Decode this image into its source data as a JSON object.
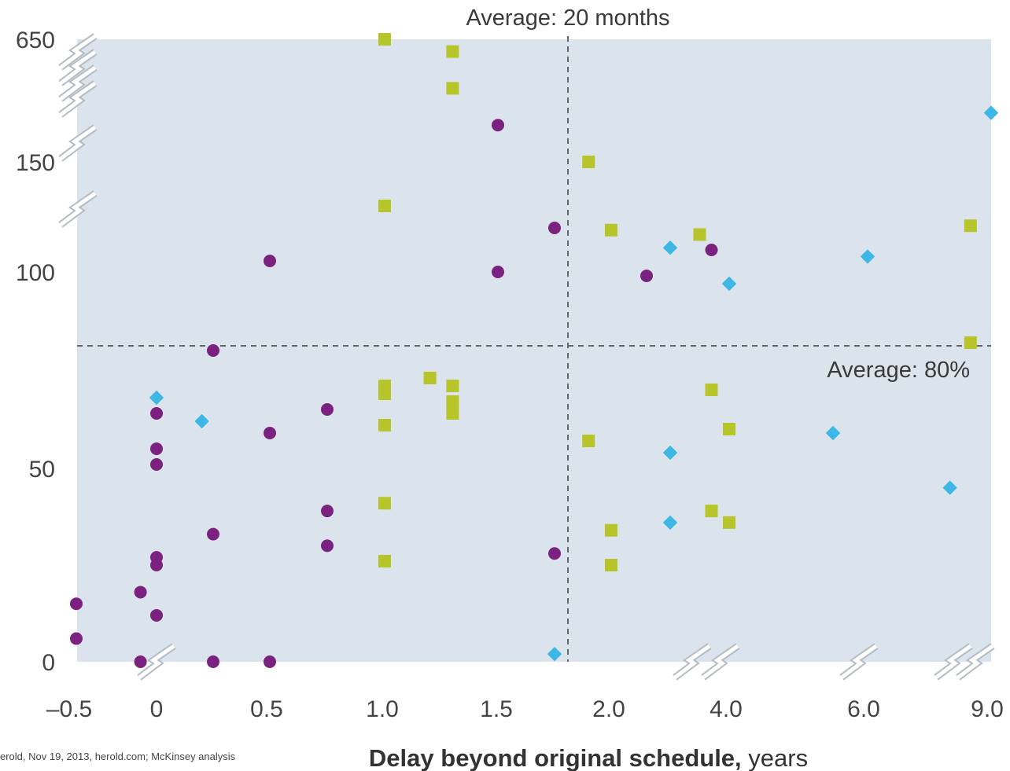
{
  "chart_data": {
    "type": "scatter",
    "title": "",
    "xlabel_bold": "Delay beyond original schedule,",
    "xlabel_unit": " years",
    "ylabel": "",
    "x_ticks": [
      "–0.5",
      "0",
      "0.5",
      "1.0",
      "1.5",
      "2.0",
      "4.0",
      "6.0",
      "9.0"
    ],
    "y_ticks": [
      "0",
      "50",
      "100",
      "150",
      "650"
    ],
    "avg_x_label": "Average: 20 months",
    "avg_y_label": "Average: 80%",
    "source_text": "erold, Nov 19, 2013, herold.com; McKinsey analysis",
    "x_axis_broken": true,
    "y_axis_broken": true,
    "grid": false,
    "colors": {
      "background": "#dbe3ec",
      "circle": "#7b2280",
      "square": "#b7c42a",
      "diamond": "#3db8e6",
      "average_line": "#666666",
      "break_mark": "#b5bcc4"
    },
    "series": [
      {
        "marker": "circle",
        "points": [
          [
            -0.5,
            15
          ],
          [
            -0.5,
            6
          ],
          [
            -0.1,
            18
          ],
          [
            -0.1,
            0
          ],
          [
            0,
            64
          ],
          [
            0,
            55
          ],
          [
            0,
            51
          ],
          [
            0,
            27
          ],
          [
            0,
            25
          ],
          [
            0,
            12
          ],
          [
            0.25,
            80
          ],
          [
            0.25,
            33
          ],
          [
            0.25,
            0
          ],
          [
            0.5,
            105
          ],
          [
            0.5,
            59
          ],
          [
            0.5,
            0
          ],
          [
            0.75,
            65
          ],
          [
            0.75,
            39
          ],
          [
            0.75,
            30
          ],
          [
            1.5,
            300
          ],
          [
            1.5,
            100
          ],
          [
            1.75,
            120
          ],
          [
            1.75,
            28
          ],
          [
            2.6,
            99
          ],
          [
            3.7,
            110
          ]
        ]
      },
      {
        "marker": "square",
        "points": [
          [
            1.0,
            650
          ],
          [
            1.0,
            130
          ],
          [
            1.0,
            71
          ],
          [
            1.0,
            69
          ],
          [
            1.0,
            61
          ],
          [
            1.0,
            41
          ],
          [
            1.0,
            26
          ],
          [
            1.2,
            73
          ],
          [
            1.3,
            600
          ],
          [
            1.3,
            450
          ],
          [
            1.3,
            71
          ],
          [
            1.3,
            67
          ],
          [
            1.3,
            64
          ],
          [
            1.9,
            150
          ],
          [
            1.9,
            57
          ],
          [
            2.0,
            119
          ],
          [
            2.0,
            34
          ],
          [
            2.0,
            25
          ],
          [
            3.5,
            117
          ],
          [
            3.7,
            70
          ],
          [
            3.7,
            39
          ],
          [
            4.0,
            60
          ],
          [
            4.0,
            36
          ],
          [
            8.5,
            121
          ],
          [
            8.5,
            82
          ]
        ]
      },
      {
        "marker": "diamond",
        "points": [
          [
            0,
            68
          ],
          [
            0.2,
            62
          ],
          [
            1.75,
            2
          ],
          [
            3.0,
            111
          ],
          [
            3.0,
            54
          ],
          [
            3.0,
            36
          ],
          [
            4.0,
            97
          ],
          [
            6.0,
            107
          ],
          [
            5.5,
            59
          ],
          [
            8.0,
            45
          ],
          [
            9.0,
            350
          ]
        ]
      }
    ]
  }
}
